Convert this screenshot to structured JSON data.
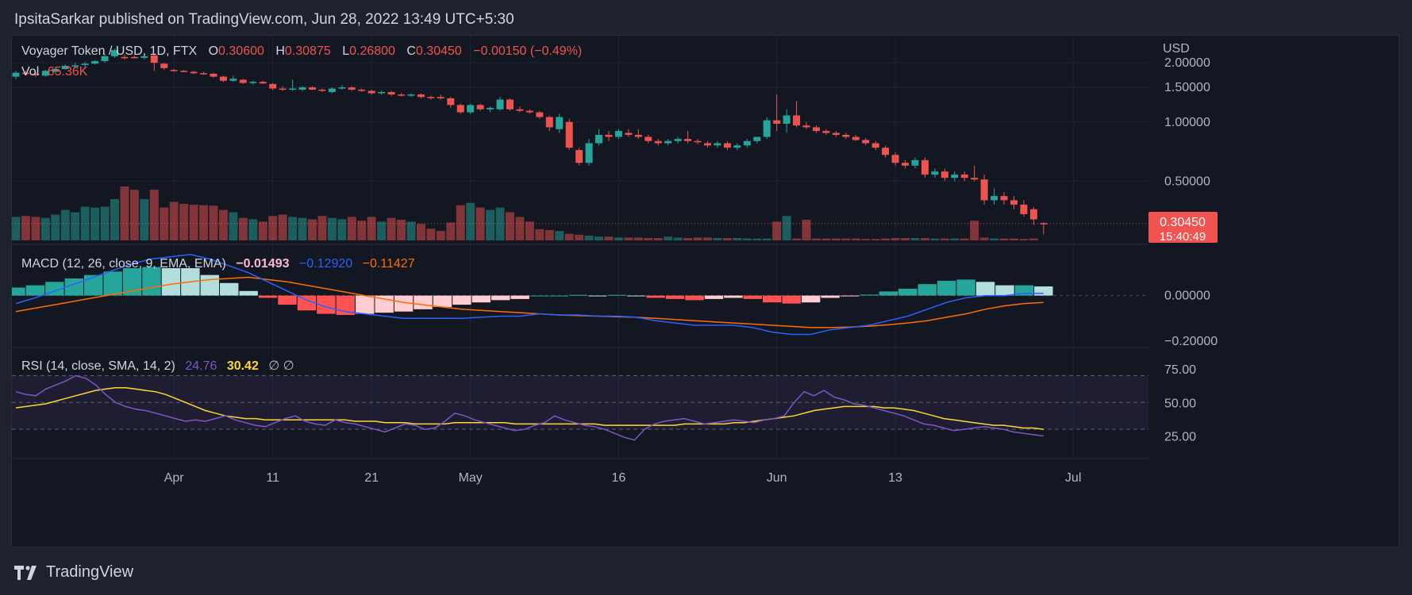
{
  "header": {
    "text": "IpsitaSarkar published on TradingView.com, Jun 28, 2022 13:49 UTC+5:30"
  },
  "footer": {
    "brand": "TradingView"
  },
  "colors": {
    "up": "#26a69a",
    "down": "#ef5350",
    "macd": "#2962ff",
    "signal": "#ff6d00",
    "rsi": "#7e57c2",
    "rsi_ma": "#fdd835",
    "bg": "#131722",
    "grid": "#1f2433",
    "text": "#b2b5be"
  },
  "chart_data": {
    "type": "candlestick",
    "symbol": "Voyager Token / USD, 1D, FTX",
    "ohlc_legend": {
      "o_label": "O",
      "o_value": "0.30600",
      "h_label": "H",
      "h_value": "0.30875",
      "l_label": "L",
      "l_value": "0.26800",
      "c_label": "C",
      "c_value": "0.30450",
      "change": "−0.00150 (−0.49%)"
    },
    "volume_legend": {
      "label": "Vol",
      "value": "65.36K"
    },
    "currency": "USD",
    "price_ticks": [
      "2.00000",
      "1.50000",
      "1.00000",
      "0.50000"
    ],
    "last_price": "0.30450",
    "countdown": "15:40:49",
    "x_ticks": [
      "Apr",
      "11",
      "21",
      "May",
      "16",
      "Jun",
      "13",
      "Jul"
    ],
    "candles": [
      [
        1.7,
        1.82,
        1.65,
        1.78
      ],
      [
        1.78,
        1.82,
        1.74,
        1.76
      ],
      [
        1.76,
        1.8,
        1.7,
        1.74
      ],
      [
        1.72,
        1.84,
        1.7,
        1.82
      ],
      [
        1.8,
        1.88,
        1.78,
        1.86
      ],
      [
        1.86,
        1.96,
        1.84,
        1.93
      ],
      [
        1.93,
        2.0,
        1.88,
        1.94
      ],
      [
        1.95,
        2.02,
        1.9,
        1.98
      ],
      [
        1.98,
        2.06,
        1.96,
        2.04
      ],
      [
        2.04,
        2.22,
        2.0,
        2.16
      ],
      [
        2.16,
        2.36,
        2.12,
        2.32
      ],
      [
        2.14,
        2.2,
        2.08,
        2.12
      ],
      [
        2.14,
        2.18,
        2.1,
        2.12
      ],
      [
        2.12,
        2.18,
        2.08,
        2.16
      ],
      [
        2.18,
        2.22,
        1.82,
        2.0
      ],
      [
        1.98,
        2.0,
        1.84,
        1.88
      ],
      [
        1.84,
        1.86,
        1.8,
        1.82
      ],
      [
        1.82,
        1.84,
        1.79,
        1.8
      ],
      [
        1.8,
        1.82,
        1.75,
        1.77
      ],
      [
        1.77,
        1.8,
        1.74,
        1.75
      ],
      [
        1.76,
        1.78,
        1.68,
        1.7
      ],
      [
        1.7,
        1.72,
        1.6,
        1.62
      ],
      [
        1.62,
        1.72,
        1.6,
        1.66
      ],
      [
        1.64,
        1.66,
        1.56,
        1.58
      ],
      [
        1.58,
        1.62,
        1.55,
        1.6
      ],
      [
        1.6,
        1.62,
        1.56,
        1.57
      ],
      [
        1.56,
        1.58,
        1.45,
        1.48
      ],
      [
        1.48,
        1.52,
        1.44,
        1.46
      ],
      [
        1.46,
        1.64,
        1.44,
        1.48
      ],
      [
        1.46,
        1.52,
        1.43,
        1.5
      ],
      [
        1.5,
        1.52,
        1.45,
        1.46
      ],
      [
        1.46,
        1.48,
        1.42,
        1.44
      ],
      [
        1.42,
        1.5,
        1.4,
        1.48
      ],
      [
        1.48,
        1.54,
        1.46,
        1.5
      ],
      [
        1.5,
        1.52,
        1.44,
        1.46
      ],
      [
        1.46,
        1.48,
        1.42,
        1.44
      ],
      [
        1.44,
        1.46,
        1.38,
        1.4
      ],
      [
        1.4,
        1.44,
        1.38,
        1.42
      ],
      [
        1.42,
        1.44,
        1.36,
        1.38
      ],
      [
        1.38,
        1.4,
        1.35,
        1.37
      ],
      [
        1.36,
        1.4,
        1.34,
        1.38
      ],
      [
        1.38,
        1.4,
        1.32,
        1.34
      ],
      [
        1.34,
        1.36,
        1.3,
        1.33
      ],
      [
        1.34,
        1.38,
        1.3,
        1.32
      ],
      [
        1.32,
        1.34,
        1.18,
        1.22
      ],
      [
        1.22,
        1.24,
        1.1,
        1.12
      ],
      [
        1.12,
        1.24,
        1.1,
        1.22
      ],
      [
        1.22,
        1.24,
        1.14,
        1.16
      ],
      [
        1.16,
        1.2,
        1.12,
        1.18
      ],
      [
        1.16,
        1.34,
        1.14,
        1.3
      ],
      [
        1.3,
        1.32,
        1.14,
        1.16
      ],
      [
        1.16,
        1.2,
        1.12,
        1.14
      ],
      [
        1.14,
        1.16,
        1.1,
        1.12
      ],
      [
        1.12,
        1.14,
        1.04,
        1.06
      ],
      [
        1.06,
        1.08,
        0.9,
        0.94
      ],
      [
        0.92,
        1.1,
        0.88,
        1.06
      ],
      [
        1.0,
        1.04,
        0.72,
        0.74
      ],
      [
        0.72,
        0.74,
        0.6,
        0.62
      ],
      [
        0.62,
        0.82,
        0.6,
        0.78
      ],
      [
        0.78,
        0.92,
        0.76,
        0.86
      ],
      [
        0.86,
        0.9,
        0.8,
        0.84
      ],
      [
        0.84,
        0.92,
        0.82,
        0.9
      ],
      [
        0.88,
        0.92,
        0.84,
        0.86
      ],
      [
        0.86,
        0.92,
        0.82,
        0.84
      ],
      [
        0.84,
        0.86,
        0.78,
        0.8
      ],
      [
        0.8,
        0.82,
        0.76,
        0.78
      ],
      [
        0.78,
        0.82,
        0.76,
        0.8
      ],
      [
        0.8,
        0.84,
        0.78,
        0.82
      ],
      [
        0.82,
        0.9,
        0.78,
        0.8
      ],
      [
        0.8,
        0.82,
        0.77,
        0.79
      ],
      [
        0.78,
        0.8,
        0.74,
        0.76
      ],
      [
        0.76,
        0.8,
        0.74,
        0.78
      ],
      [
        0.78,
        0.8,
        0.72,
        0.74
      ],
      [
        0.74,
        0.78,
        0.72,
        0.76
      ],
      [
        0.76,
        0.82,
        0.74,
        0.8
      ],
      [
        0.8,
        0.84,
        0.78,
        0.84
      ],
      [
        0.84,
        1.06,
        0.82,
        1.02
      ],
      [
        1.02,
        1.38,
        0.9,
        0.98
      ],
      [
        0.98,
        1.16,
        0.88,
        1.08
      ],
      [
        1.08,
        1.28,
        0.94,
        0.96
      ],
      [
        0.96,
        1.0,
        0.92,
        0.94
      ],
      [
        0.94,
        0.96,
        0.88,
        0.9
      ],
      [
        0.9,
        0.92,
        0.86,
        0.88
      ],
      [
        0.88,
        0.9,
        0.84,
        0.86
      ],
      [
        0.86,
        0.88,
        0.82,
        0.84
      ],
      [
        0.84,
        0.86,
        0.8,
        0.81
      ],
      [
        0.81,
        0.83,
        0.76,
        0.78
      ],
      [
        0.78,
        0.8,
        0.72,
        0.74
      ],
      [
        0.74,
        0.76,
        0.66,
        0.68
      ],
      [
        0.68,
        0.7,
        0.6,
        0.62
      ],
      [
        0.62,
        0.64,
        0.58,
        0.6
      ],
      [
        0.6,
        0.66,
        0.58,
        0.64
      ],
      [
        0.64,
        0.66,
        0.52,
        0.54
      ],
      [
        0.54,
        0.58,
        0.52,
        0.56
      ],
      [
        0.56,
        0.58,
        0.5,
        0.52
      ],
      [
        0.52,
        0.56,
        0.5,
        0.54
      ],
      [
        0.54,
        0.56,
        0.5,
        0.52
      ],
      [
        0.52,
        0.6,
        0.5,
        0.51
      ],
      [
        0.51,
        0.54,
        0.38,
        0.4
      ],
      [
        0.4,
        0.46,
        0.38,
        0.42
      ],
      [
        0.42,
        0.44,
        0.38,
        0.4
      ],
      [
        0.4,
        0.42,
        0.36,
        0.38
      ],
      [
        0.38,
        0.4,
        0.33,
        0.34
      ],
      [
        0.36,
        0.37,
        0.3,
        0.32
      ],
      [
        0.306,
        0.30875,
        0.268,
        0.3045
      ]
    ],
    "volumes": [
      0.5,
      0.52,
      0.5,
      0.48,
      0.55,
      0.65,
      0.6,
      0.72,
      0.7,
      0.72,
      0.88,
      1.15,
      1.08,
      0.88,
      1.08,
      0.7,
      0.82,
      0.78,
      0.76,
      0.75,
      0.74,
      0.65,
      0.6,
      0.48,
      0.45,
      0.4,
      0.52,
      0.55,
      0.5,
      0.48,
      0.45,
      0.52,
      0.48,
      0.45,
      0.5,
      0.42,
      0.5,
      0.4,
      0.48,
      0.44,
      0.4,
      0.35,
      0.25,
      0.2,
      0.38,
      0.75,
      0.8,
      0.7,
      0.65,
      0.7,
      0.6,
      0.5,
      0.4,
      0.24,
      0.22,
      0.2,
      0.14,
      0.12,
      0.1,
      0.08,
      0.08,
      0.06,
      0.06,
      0.06,
      0.05,
      0.05,
      0.08,
      0.06,
      0.05,
      0.06,
      0.06,
      0.05,
      0.05,
      0.05,
      0.04,
      0.04,
      0.04,
      0.4,
      0.52,
      0.04,
      0.44,
      0.04,
      0.04,
      0.04,
      0.04,
      0.04,
      0.03,
      0.03,
      0.04,
      0.05,
      0.05,
      0.05,
      0.05,
      0.04,
      0.04,
      0.04,
      0.04,
      0.42,
      0.06,
      0.04,
      0.04,
      0.04,
      0.03,
      0.04
    ],
    "macd": {
      "legend": "MACD (12, 26, close, 9, EMA, EMA)",
      "hist_value": "−0.01493",
      "macd_value": "−0.12920",
      "signal_value": "−0.11427",
      "ticks": [
        "0.00000",
        "−0.20000"
      ],
      "macd_line": [
        -0.035,
        -0.01,
        0.02,
        0.05,
        0.08,
        0.11,
        0.14,
        0.16,
        0.17,
        0.18,
        0.16,
        0.13,
        0.1,
        0.06,
        0.02,
        -0.02,
        -0.05,
        -0.07,
        -0.08,
        -0.09,
        -0.1,
        -0.1,
        -0.1,
        -0.1,
        -0.095,
        -0.09,
        -0.09,
        -0.08,
        -0.085,
        -0.085,
        -0.09,
        -0.09,
        -0.095,
        -0.11,
        -0.12,
        -0.13,
        -0.13,
        -0.13,
        -0.14,
        -0.16,
        -0.17,
        -0.17,
        -0.15,
        -0.14,
        -0.13,
        -0.11,
        -0.09,
        -0.06,
        -0.03,
        -0.01,
        0.0,
        0.0,
        0.01,
        0.01
      ],
      "signal_line": [
        -0.07,
        -0.055,
        -0.04,
        -0.025,
        -0.01,
        0.005,
        0.02,
        0.035,
        0.05,
        0.06,
        0.07,
        0.075,
        0.08,
        0.07,
        0.06,
        0.045,
        0.03,
        0.015,
        0.0,
        -0.015,
        -0.03,
        -0.04,
        -0.05,
        -0.06,
        -0.065,
        -0.07,
        -0.075,
        -0.08,
        -0.085,
        -0.088,
        -0.09,
        -0.093,
        -0.095,
        -0.1,
        -0.105,
        -0.11,
        -0.115,
        -0.12,
        -0.125,
        -0.13,
        -0.135,
        -0.14,
        -0.14,
        -0.138,
        -0.134,
        -0.128,
        -0.12,
        -0.11,
        -0.095,
        -0.08,
        -0.06,
        -0.045,
        -0.035,
        -0.03
      ]
    },
    "rsi": {
      "legend": "RSI (14, close, SMA, 14, 2)",
      "rsi_value": "24.76",
      "ma_value": "30.42",
      "extra": "∅  ∅",
      "ticks": [
        "75.00",
        "50.00",
        "25.00"
      ],
      "rsi_line": [
        58,
        56,
        55,
        60,
        63,
        66,
        70,
        68,
        63,
        56,
        50,
        47,
        45,
        44,
        42,
        40,
        38,
        36,
        37,
        36,
        38,
        40,
        37,
        35,
        33,
        32,
        35,
        38,
        40,
        36,
        34,
        33,
        37,
        35,
        34,
        32,
        30,
        28,
        31,
        34,
        33,
        30,
        31,
        36,
        42,
        40,
        37,
        35,
        33,
        31,
        29,
        30,
        33,
        35,
        40,
        37,
        35,
        33,
        32,
        30,
        27,
        24,
        22,
        30,
        34,
        36,
        37,
        38,
        36,
        34,
        35,
        36,
        37,
        36,
        35,
        37,
        38,
        40,
        50,
        58,
        55,
        59,
        54,
        52,
        49,
        48,
        46,
        44,
        42,
        40,
        37,
        34,
        33,
        31,
        29,
        30,
        31,
        32,
        31,
        30,
        28,
        27,
        26,
        25
      ],
      "ma_line": [
        46,
        47,
        48,
        49,
        51,
        53,
        55,
        57,
        59,
        60,
        61,
        61,
        60,
        59,
        58,
        56,
        53,
        50,
        47,
        44,
        42,
        40,
        39,
        38,
        38,
        37,
        37,
        37,
        37,
        37,
        37,
        37,
        37,
        37,
        36,
        36,
        36,
        35,
        35,
        35,
        34,
        34,
        34,
        34,
        35,
        35,
        35,
        35,
        35,
        35,
        34,
        34,
        34,
        34,
        34,
        34,
        34,
        34,
        34,
        33,
        33,
        33,
        33,
        33,
        33,
        33,
        33,
        34,
        34,
        34,
        34,
        34,
        35,
        35,
        36,
        37,
        38,
        39,
        40,
        42,
        44,
        45,
        46,
        47,
        47,
        47,
        47,
        46,
        46,
        45,
        44,
        42,
        40,
        38,
        37,
        36,
        35,
        34,
        33,
        33,
        32,
        31,
        31,
        30
      ]
    }
  }
}
